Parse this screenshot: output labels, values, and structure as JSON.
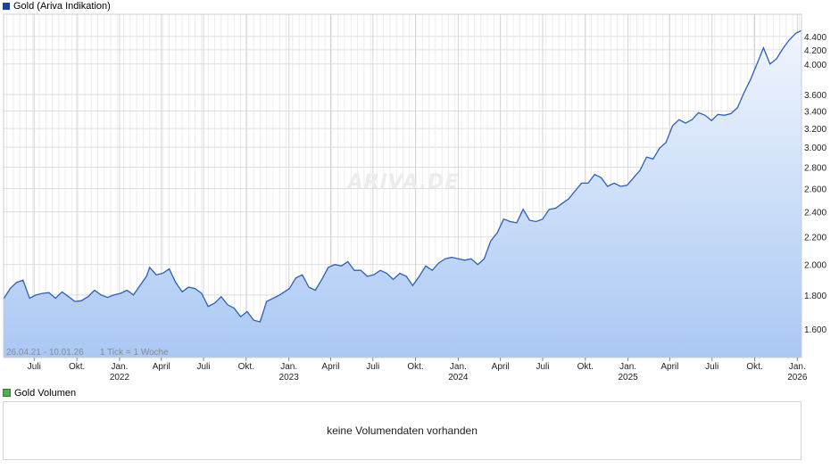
{
  "legend": {
    "main_label": "Gold (Ariva Indikation)",
    "main_color": "#1f3f9f",
    "volume_label": "Gold Volumen",
    "volume_color": "#4caf50"
  },
  "info": {
    "date_range": "26.04.21 - 10.01.26",
    "tick_info": "1 Tick = 1 Woche"
  },
  "watermark": "ARIVA.DE",
  "volume_panel": {
    "message": "keine Volumendaten vorhanden"
  },
  "chart_data": {
    "type": "area",
    "title": "Gold (Ariva Indikation)",
    "x_start": "2021-04-26",
    "x_end": "2026-01-10",
    "y_scale": "log",
    "ylim": [
      1450,
      4750
    ],
    "grid": true,
    "line_color": "#2a5fbf",
    "fill_top_color": "#f0f5fd",
    "fill_bottom_color": "#aac8f3",
    "y_ticks": [
      {
        "value": 1600,
        "label": "1.600"
      },
      {
        "value": 1800,
        "label": "1.800"
      },
      {
        "value": 2000,
        "label": "2.000"
      },
      {
        "value": 2200,
        "label": "2.200"
      },
      {
        "value": 2400,
        "label": "2.400"
      },
      {
        "value": 2600,
        "label": "2.600"
      },
      {
        "value": 2800,
        "label": "2.800"
      },
      {
        "value": 3000,
        "label": "3.000"
      },
      {
        "value": 3200,
        "label": "3.200"
      },
      {
        "value": 3400,
        "label": "3.400"
      },
      {
        "value": 3600,
        "label": "3.600"
      },
      {
        "value": 4000,
        "label": "4.000"
      },
      {
        "value": 4200,
        "label": "4.200"
      },
      {
        "value": 4400,
        "label": "4.400"
      }
    ],
    "x_ticks": [
      {
        "date": "2021-07-01",
        "label": "Juli",
        "year": ""
      },
      {
        "date": "2021-10-01",
        "label": "Okt.",
        "year": ""
      },
      {
        "date": "2022-01-01",
        "label": "Jan.",
        "year": "2022"
      },
      {
        "date": "2022-04-01",
        "label": "April",
        "year": ""
      },
      {
        "date": "2022-07-01",
        "label": "Juli",
        "year": ""
      },
      {
        "date": "2022-10-01",
        "label": "Okt.",
        "year": ""
      },
      {
        "date": "2023-01-01",
        "label": "Jan.",
        "year": "2023"
      },
      {
        "date": "2023-04-01",
        "label": "April",
        "year": ""
      },
      {
        "date": "2023-07-01",
        "label": "Juli",
        "year": ""
      },
      {
        "date": "2023-10-01",
        "label": "Okt.",
        "year": ""
      },
      {
        "date": "2024-01-01",
        "label": "Jan.",
        "year": "2024"
      },
      {
        "date": "2024-04-01",
        "label": "April",
        "year": ""
      },
      {
        "date": "2024-07-01",
        "label": "Juli",
        "year": ""
      },
      {
        "date": "2024-10-01",
        "label": "Okt.",
        "year": ""
      },
      {
        "date": "2025-01-01",
        "label": "Jan.",
        "year": "2025"
      },
      {
        "date": "2025-04-01",
        "label": "April",
        "year": ""
      },
      {
        "date": "2025-07-01",
        "label": "Juli",
        "year": ""
      },
      {
        "date": "2025-10-01",
        "label": "Okt.",
        "year": ""
      },
      {
        "date": "2026-01-01",
        "label": "Jan.",
        "year": "2026"
      }
    ],
    "series": [
      {
        "name": "Gold (Ariva Indikation)",
        "points": [
          [
            "2021-04-26",
            1775
          ],
          [
            "2021-05-10",
            1840
          ],
          [
            "2021-05-24",
            1880
          ],
          [
            "2021-06-07",
            1895
          ],
          [
            "2021-06-21",
            1780
          ],
          [
            "2021-07-05",
            1800
          ],
          [
            "2021-07-19",
            1810
          ],
          [
            "2021-08-02",
            1815
          ],
          [
            "2021-08-16",
            1780
          ],
          [
            "2021-08-30",
            1820
          ],
          [
            "2021-09-13",
            1790
          ],
          [
            "2021-09-27",
            1760
          ],
          [
            "2021-10-11",
            1765
          ],
          [
            "2021-10-25",
            1790
          ],
          [
            "2021-11-08",
            1830
          ],
          [
            "2021-11-22",
            1800
          ],
          [
            "2021-12-06",
            1785
          ],
          [
            "2021-12-20",
            1800
          ],
          [
            "2022-01-03",
            1810
          ],
          [
            "2022-01-17",
            1830
          ],
          [
            "2022-01-31",
            1800
          ],
          [
            "2022-02-14",
            1860
          ],
          [
            "2022-02-28",
            1920
          ],
          [
            "2022-03-07",
            1980
          ],
          [
            "2022-03-21",
            1930
          ],
          [
            "2022-04-04",
            1940
          ],
          [
            "2022-04-18",
            1970
          ],
          [
            "2022-05-02",
            1880
          ],
          [
            "2022-05-16",
            1820
          ],
          [
            "2022-05-30",
            1850
          ],
          [
            "2022-06-13",
            1840
          ],
          [
            "2022-06-27",
            1810
          ],
          [
            "2022-07-11",
            1730
          ],
          [
            "2022-07-25",
            1750
          ],
          [
            "2022-08-08",
            1790
          ],
          [
            "2022-08-22",
            1740
          ],
          [
            "2022-09-05",
            1720
          ],
          [
            "2022-09-19",
            1670
          ],
          [
            "2022-10-03",
            1700
          ],
          [
            "2022-10-17",
            1650
          ],
          [
            "2022-10-31",
            1640
          ],
          [
            "2022-11-14",
            1760
          ],
          [
            "2022-11-28",
            1780
          ],
          [
            "2022-12-12",
            1800
          ],
          [
            "2023-01-02",
            1840
          ],
          [
            "2023-01-16",
            1910
          ],
          [
            "2023-01-30",
            1930
          ],
          [
            "2023-02-13",
            1850
          ],
          [
            "2023-02-27",
            1830
          ],
          [
            "2023-03-13",
            1900
          ],
          [
            "2023-03-27",
            1980
          ],
          [
            "2023-04-10",
            2000
          ],
          [
            "2023-04-24",
            1990
          ],
          [
            "2023-05-08",
            2020
          ],
          [
            "2023-05-22",
            1960
          ],
          [
            "2023-06-05",
            1960
          ],
          [
            "2023-06-19",
            1920
          ],
          [
            "2023-07-03",
            1930
          ],
          [
            "2023-07-17",
            1960
          ],
          [
            "2023-07-31",
            1940
          ],
          [
            "2023-08-14",
            1900
          ],
          [
            "2023-08-28",
            1940
          ],
          [
            "2023-09-11",
            1920
          ],
          [
            "2023-09-25",
            1860
          ],
          [
            "2023-10-09",
            1920
          ],
          [
            "2023-10-23",
            1990
          ],
          [
            "2023-11-06",
            1960
          ],
          [
            "2023-11-20",
            2010
          ],
          [
            "2023-12-04",
            2040
          ],
          [
            "2023-12-18",
            2050
          ],
          [
            "2024-01-01",
            2040
          ],
          [
            "2024-01-15",
            2030
          ],
          [
            "2024-01-29",
            2040
          ],
          [
            "2024-02-12",
            2000
          ],
          [
            "2024-02-26",
            2040
          ],
          [
            "2024-03-11",
            2170
          ],
          [
            "2024-03-25",
            2230
          ],
          [
            "2024-04-08",
            2340
          ],
          [
            "2024-04-22",
            2320
          ],
          [
            "2024-05-06",
            2310
          ],
          [
            "2024-05-20",
            2420
          ],
          [
            "2024-06-03",
            2330
          ],
          [
            "2024-06-17",
            2320
          ],
          [
            "2024-07-01",
            2340
          ],
          [
            "2024-07-15",
            2420
          ],
          [
            "2024-07-29",
            2430
          ],
          [
            "2024-08-12",
            2470
          ],
          [
            "2024-08-26",
            2510
          ],
          [
            "2024-09-09",
            2580
          ],
          [
            "2024-09-23",
            2650
          ],
          [
            "2024-10-07",
            2650
          ],
          [
            "2024-10-21",
            2730
          ],
          [
            "2024-11-04",
            2700
          ],
          [
            "2024-11-18",
            2620
          ],
          [
            "2024-12-02",
            2650
          ],
          [
            "2024-12-16",
            2620
          ],
          [
            "2024-12-30",
            2630
          ],
          [
            "2025-01-13",
            2700
          ],
          [
            "2025-01-27",
            2770
          ],
          [
            "2025-02-10",
            2900
          ],
          [
            "2025-02-24",
            2880
          ],
          [
            "2025-03-10",
            2990
          ],
          [
            "2025-03-24",
            3050
          ],
          [
            "2025-04-07",
            3230
          ],
          [
            "2025-04-21",
            3300
          ],
          [
            "2025-05-05",
            3260
          ],
          [
            "2025-05-19",
            3300
          ],
          [
            "2025-06-02",
            3380
          ],
          [
            "2025-06-16",
            3350
          ],
          [
            "2025-06-30",
            3290
          ],
          [
            "2025-07-14",
            3360
          ],
          [
            "2025-07-28",
            3350
          ],
          [
            "2025-08-11",
            3370
          ],
          [
            "2025-08-25",
            3440
          ],
          [
            "2025-09-08",
            3620
          ],
          [
            "2025-09-22",
            3790
          ],
          [
            "2025-10-06",
            4000
          ],
          [
            "2025-10-20",
            4230
          ],
          [
            "2025-11-03",
            4000
          ],
          [
            "2025-11-17",
            4070
          ],
          [
            "2025-12-01",
            4220
          ],
          [
            "2025-12-15",
            4350
          ],
          [
            "2025-12-29",
            4450
          ],
          [
            "2026-01-10",
            4490
          ]
        ]
      }
    ]
  }
}
